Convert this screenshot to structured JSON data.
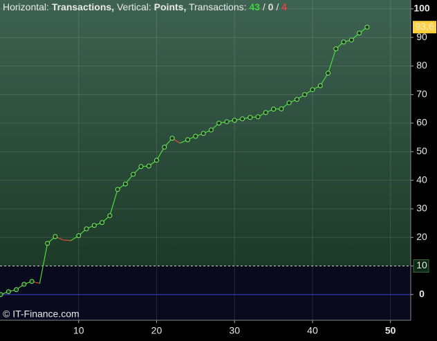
{
  "chart_data": {
    "type": "line",
    "header": {
      "h_label": "Horizontal:",
      "h_value": "Transactions,",
      "v_label": "Vertical:",
      "v_value": "Points,",
      "t_label": "Transactions:",
      "wins": "43",
      "sep1": "/",
      "zero": "0",
      "sep2": "/",
      "losses": "4"
    },
    "watermark": "© IT-Finance.com",
    "x": [
      0,
      1,
      2,
      3,
      4,
      5,
      6,
      7,
      8,
      9,
      10,
      11,
      12,
      13,
      14,
      15,
      16,
      17,
      18,
      19,
      20,
      21,
      22,
      23,
      24,
      25,
      26,
      27,
      28,
      29,
      30,
      31,
      32,
      33,
      34,
      35,
      36,
      37,
      38,
      39,
      40,
      41,
      42,
      43,
      44,
      45,
      46,
      47
    ],
    "series": [
      {
        "name": "Points",
        "up_color": "#4ddc3c",
        "down_color": "#d9513a",
        "values": [
          0,
          1,
          1.7,
          3.6,
          4.6,
          3.9,
          17.9,
          20.3,
          19.1,
          18.9,
          20.6,
          23,
          24.2,
          25.2,
          27.6,
          36.8,
          38.7,
          42.1,
          44.8,
          45,
          47,
          51.6,
          54.7,
          53,
          54.2,
          55.4,
          56.4,
          57.6,
          60,
          60.5,
          61,
          61.5,
          62,
          62.2,
          63.7,
          64.9,
          65,
          67.1,
          68.3,
          70,
          71.7,
          73.1,
          77.5,
          86,
          88.4,
          89.1,
          91.5,
          93.6
        ],
        "value_labels": [
          null,
          null,
          null,
          null,
          null,
          null,
          null,
          null,
          null,
          null,
          null,
          null,
          null,
          null,
          null,
          null,
          null,
          null,
          null,
          null,
          null,
          null,
          null,
          null,
          null,
          null,
          null,
          null,
          null,
          null,
          null,
          null,
          null,
          null,
          null,
          null,
          null,
          null,
          null,
          null,
          null,
          null,
          null,
          null,
          null,
          null,
          null,
          "93,6"
        ]
      }
    ],
    "threshold": 10,
    "xlim": [
      0,
      52.6
    ],
    "ylim": [
      -9,
      103.1
    ],
    "xticks": [
      10,
      20,
      30,
      40,
      50
    ],
    "yticks": [
      0,
      10,
      20,
      30,
      40,
      50,
      60,
      70,
      80,
      90,
      100
    ],
    "grid": true
  }
}
